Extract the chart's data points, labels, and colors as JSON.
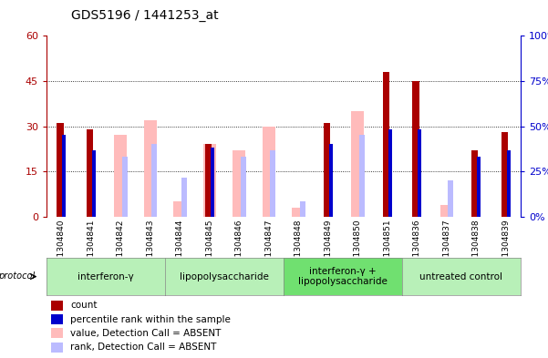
{
  "title": "GDS5196 / 1441253_at",
  "samples": [
    "GSM1304840",
    "GSM1304841",
    "GSM1304842",
    "GSM1304843",
    "GSM1304844",
    "GSM1304845",
    "GSM1304846",
    "GSM1304847",
    "GSM1304848",
    "GSM1304849",
    "GSM1304850",
    "GSM1304851",
    "GSM1304836",
    "GSM1304837",
    "GSM1304838",
    "GSM1304839"
  ],
  "count": [
    31,
    29,
    0,
    0,
    0,
    24,
    0,
    0,
    0,
    31,
    0,
    48,
    45,
    0,
    22,
    28
  ],
  "percentile": [
    27,
    22,
    0,
    0,
    0,
    23,
    0,
    0,
    0,
    24,
    0,
    29,
    29,
    0,
    20,
    22
  ],
  "value_absent": [
    0,
    0,
    27,
    32,
    5,
    24,
    22,
    30,
    3,
    0,
    35,
    0,
    0,
    4,
    0,
    0
  ],
  "rank_absent": [
    0,
    0,
    20,
    24,
    13,
    0,
    20,
    22,
    5,
    0,
    27,
    0,
    0,
    12,
    0,
    0
  ],
  "groups": [
    {
      "label": "interferon-γ",
      "start": 0,
      "end": 4,
      "color": "#b8f0b8"
    },
    {
      "label": "lipopolysaccharide",
      "start": 4,
      "end": 8,
      "color": "#b8f0b8"
    },
    {
      "label": "interferon-γ +\nlipopolysaccharide",
      "start": 8,
      "end": 12,
      "color": "#70e070"
    },
    {
      "label": "untreated control",
      "start": 12,
      "end": 16,
      "color": "#b8f0b8"
    }
  ],
  "ylim_left": [
    0,
    60
  ],
  "ylim_right": [
    0,
    100
  ],
  "yticks_left": [
    0,
    15,
    30,
    45,
    60
  ],
  "yticks_right": [
    0,
    25,
    50,
    75,
    100
  ],
  "color_red": "#aa0000",
  "color_blue": "#0000cc",
  "color_pink": "#ffbbbb",
  "color_lightblue": "#bbbbff",
  "bg_color": "#ffffff"
}
